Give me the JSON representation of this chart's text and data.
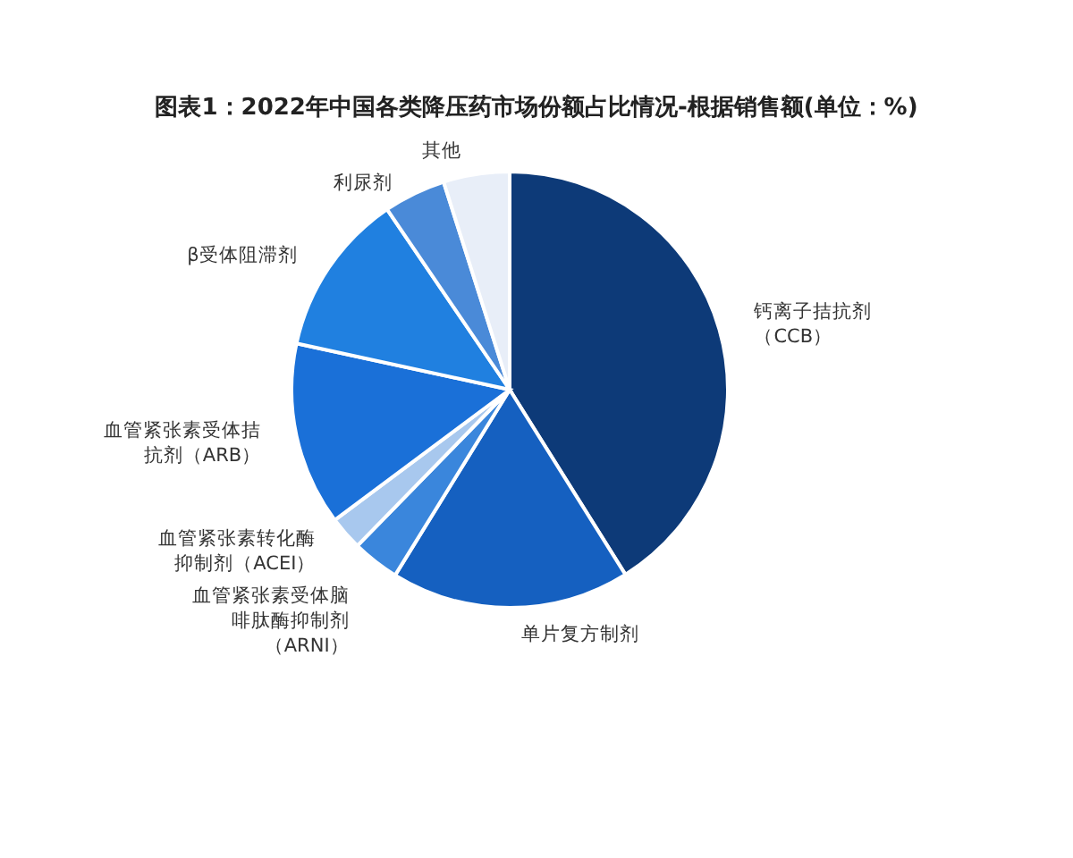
{
  "chart_data": {
    "type": "pie",
    "title": "图表1：2022年中国各类降压药市场份额占比情况-根据销售额(单位：%)",
    "categories": [
      "钙离子拮抗剂（CCB）",
      "单片复方制剂",
      "血管紧张素受体脑啡肽酶抑制剂（ARNI）",
      "血管紧张素转化酶抑制剂（ACEI）",
      "血管紧张素受体拮抗剂（ARB）",
      "β受体阻滞剂",
      "利尿剂",
      "其他"
    ],
    "values": [
      41.1,
      17.7,
      3.5,
      2.5,
      13.6,
      12.1,
      4.6,
      4.9
    ],
    "colors": [
      "#0d3a78",
      "#1560c0",
      "#3a86dc",
      "#a8c8ee",
      "#1a70d8",
      "#2080e0",
      "#4a8ad8",
      "#e8eef8"
    ]
  }
}
